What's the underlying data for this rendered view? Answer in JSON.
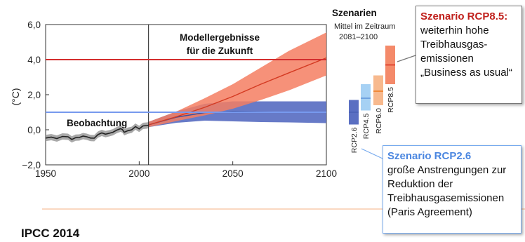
{
  "chart_data": {
    "type": "line",
    "xlim": [
      1950,
      2100
    ],
    "ylim": [
      -2,
      6
    ],
    "xticks": [
      1950,
      2000,
      2050,
      2100
    ],
    "yticks": [
      -2,
      0,
      2,
      4,
      6
    ],
    "xtick_labels": [
      "1950",
      "2000",
      "2050",
      "2100"
    ],
    "ytick_labels": [
      "−2,0",
      "0,0",
      "2,0",
      "4,0",
      "6,0"
    ],
    "ylabel": "(°C)",
    "divider_year": 2005,
    "annotations": {
      "observation": "Beobachtung",
      "model_line1": "Modellergebnisse",
      "model_line2": "für die Zukunft"
    },
    "reference_lines": [
      {
        "label": "RCP8.5",
        "y": 4.0,
        "color": "#d42e2e"
      },
      {
        "label": "RCP2.6",
        "y": 1.0,
        "color": "#7799ee"
      }
    ],
    "observed": {
      "color": "#222222",
      "band_color": "#9a9a9a",
      "points": [
        [
          1950,
          -0.47
        ],
        [
          1953,
          -0.42
        ],
        [
          1956,
          -0.5
        ],
        [
          1959,
          -0.38
        ],
        [
          1962,
          -0.4
        ],
        [
          1964,
          -0.55
        ],
        [
          1966,
          -0.45
        ],
        [
          1968,
          -0.44
        ],
        [
          1970,
          -0.36
        ],
        [
          1972,
          -0.4
        ],
        [
          1974,
          -0.47
        ],
        [
          1976,
          -0.48
        ],
        [
          1978,
          -0.27
        ],
        [
          1980,
          -0.18
        ],
        [
          1982,
          -0.25
        ],
        [
          1984,
          -0.2
        ],
        [
          1986,
          -0.14
        ],
        [
          1988,
          -0.02
        ],
        [
          1990,
          0.06
        ],
        [
          1991,
          0.02
        ],
        [
          1992,
          -0.14
        ],
        [
          1994,
          -0.05
        ],
        [
          1996,
          0.0
        ],
        [
          1998,
          0.18
        ],
        [
          2000,
          0.05
        ],
        [
          2002,
          0.22
        ],
        [
          2004,
          0.24
        ],
        [
          2005,
          0.26
        ]
      ],
      "band_halfwidth": 0.18
    },
    "series": [
      {
        "name": "RCP8.5",
        "color": "#e65a3c",
        "band_color": "#f47e62",
        "x": [
          2005,
          2020,
          2035,
          2050,
          2065,
          2080,
          2100
        ],
        "mean": [
          0.28,
          0.75,
          1.28,
          1.9,
          2.6,
          3.25,
          4.1
        ],
        "low": [
          0.15,
          0.5,
          0.82,
          1.2,
          1.7,
          2.25,
          3.1
        ],
        "high": [
          0.45,
          1.05,
          1.8,
          2.6,
          3.55,
          4.5,
          5.55
        ]
      },
      {
        "name": "RCP2.6",
        "color": "#4d64b8",
        "band_color": "#5a6fc2",
        "x": [
          2005,
          2020,
          2035,
          2050,
          2065,
          2080,
          2100
        ],
        "mean": [
          0.28,
          0.72,
          0.98,
          1.05,
          1.02,
          1.0,
          1.0
        ],
        "low": [
          0.15,
          0.4,
          0.52,
          0.48,
          0.44,
          0.42,
          0.38
        ],
        "high": [
          0.45,
          1.05,
          1.48,
          1.62,
          1.62,
          1.62,
          1.62
        ]
      }
    ],
    "scenario_header": {
      "title": "Szenarien",
      "line1": "Mittel im Zeitraum",
      "line2": "2081–2100"
    },
    "scenario_bars": [
      {
        "name": "RCP2.6",
        "mean": 1.0,
        "low": 0.3,
        "high": 1.7,
        "color": "#4d64b8",
        "band_color": "#5a6fc2"
      },
      {
        "name": "RCP4.5",
        "mean": 1.8,
        "low": 1.1,
        "high": 2.6,
        "color": "#6fa3e0",
        "band_color": "#a6d1f4"
      },
      {
        "name": "RCP6.0",
        "mean": 2.2,
        "low": 1.4,
        "high": 3.1,
        "color": "#f08a3a",
        "band_color": "#f7b98e"
      },
      {
        "name": "RCP8.5",
        "mean": 3.7,
        "low": 2.6,
        "high": 4.8,
        "color": "#e14b35",
        "band_color": "#f48a6a"
      }
    ]
  },
  "callouts": {
    "rcp85": {
      "title": "Szenario RCP8.5:",
      "title_color": "#c0201c",
      "lines": [
        "weiterhin hohe",
        "Treibhausgas-",
        "emissionen",
        "„Business as usual“"
      ]
    },
    "rcp26": {
      "title": "Szenario RCP2.6",
      "title_color": "#4a86e0",
      "lines": [
        "große Anstrengungen zur",
        "Reduktion der",
        "Treibhausgasemissionen",
        "(Paris Agreement)"
      ]
    }
  },
  "footer": {
    "source": "IPCC 2014",
    "rule_color": "#f4b183"
  }
}
